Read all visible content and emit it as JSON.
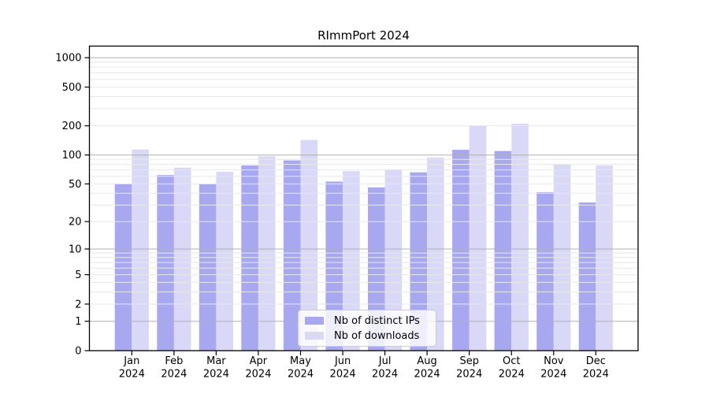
{
  "title": "RImmPort 2024",
  "legend": {
    "items": [
      {
        "label": "Nb of distinct IPs",
        "color": "#a8a8f0"
      },
      {
        "label": "Nb of downloads",
        "color": "#d9d9f7"
      }
    ]
  },
  "chart_data": {
    "type": "bar",
    "title": "RImmPort 2024",
    "categories": [
      "Jan",
      "Feb",
      "Mar",
      "Apr",
      "May",
      "Jun",
      "Jul",
      "Aug",
      "Sep",
      "Oct",
      "Nov",
      "Dec"
    ],
    "category_year": "2024",
    "series": [
      {
        "name": "Nb of distinct IPs",
        "color": "#a8a8f0",
        "values": [
          50,
          62,
          50,
          78,
          88,
          53,
          46,
          66,
          113,
          110,
          41,
          32
        ]
      },
      {
        "name": "Nb of downloads",
        "color": "#d9d9f7",
        "values": [
          114,
          74,
          67,
          97,
          143,
          68,
          71,
          94,
          200,
          210,
          81,
          78
        ]
      }
    ],
    "xlabel": "",
    "ylabel": "",
    "yscale": "log1p",
    "ylim": [
      0,
      1315
    ],
    "y_ticks": [
      0,
      1,
      2,
      5,
      10,
      20,
      50,
      100,
      200,
      500,
      1000
    ],
    "y_major_grid_values": [
      1,
      10,
      100,
      1000
    ],
    "y_minor_grid_values": [
      2,
      3,
      4,
      5,
      6,
      7,
      8,
      9,
      20,
      30,
      40,
      50,
      60,
      70,
      80,
      90,
      200,
      300,
      400,
      500,
      600,
      700,
      800,
      900
    ],
    "grid": {
      "major_color": "#b0b0b0",
      "minor_color": "#e8e8e8",
      "on": true,
      "drawn_above_bars": true
    },
    "legend_position": "lower center",
    "colors": {
      "axis": "#000000",
      "text": "#000000",
      "background": "#ffffff"
    }
  }
}
